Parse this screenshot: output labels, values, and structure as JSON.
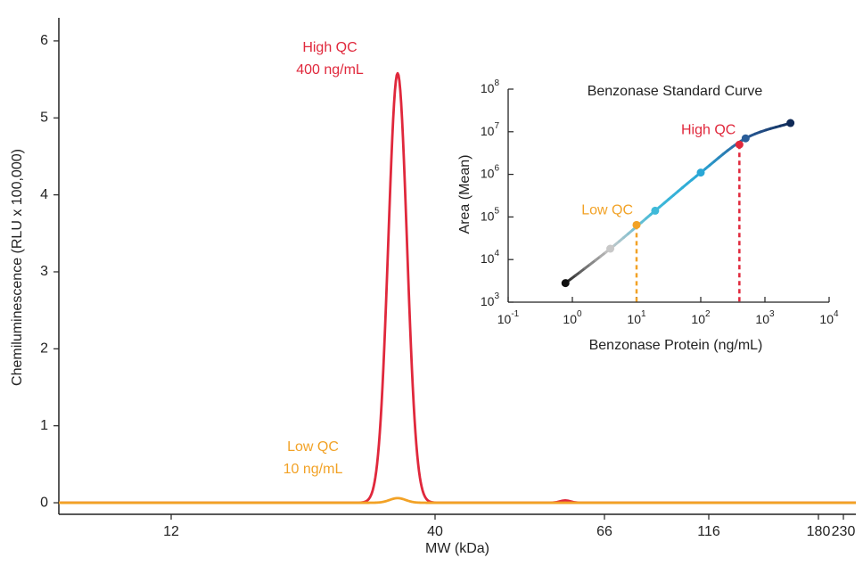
{
  "chart_data": [
    {
      "type": "line",
      "xlabel": "MW (kDa)",
      "ylabel": "Chemiluminescence (RLU x 100,000)",
      "x_tick_labels": [
        "12",
        "40",
        "66",
        "116",
        "180",
        "230"
      ],
      "y_ticks": [
        0,
        1,
        2,
        3,
        4,
        5,
        6
      ],
      "ylim": [
        -0.15,
        6.3
      ],
      "series": [
        {
          "name": "High QC 400 ng/mL",
          "color": "#e0283c",
          "points": [
            [
              "12",
              0
            ],
            [
              "40",
              5.58
            ],
            [
              "66",
              0.02
            ],
            [
              "116",
              0
            ],
            [
              "180",
              0
            ],
            [
              "230",
              0
            ]
          ]
        },
        {
          "name": "Low QC 10 ng/mL",
          "color": "#f2a226",
          "points": [
            [
              "12",
              0
            ],
            [
              "40",
              0.06
            ],
            [
              "66",
              0
            ],
            [
              "116",
              0
            ],
            [
              "180",
              0
            ],
            [
              "230",
              0
            ]
          ]
        }
      ],
      "annotations": [
        {
          "series": 0,
          "lines": [
            "High QC",
            "400 ng/mL"
          ]
        },
        {
          "series": 1,
          "lines": [
            "Low QC",
            "10 ng/mL"
          ]
        }
      ]
    },
    {
      "type": "line",
      "title": "Benzonase Standard Curve",
      "xlabel": "Benzonase Protein (ng/mL)",
      "ylabel": "Area (Mean)",
      "x_scale": "log",
      "y_scale": "log",
      "xlim": [
        0.1,
        10000
      ],
      "ylim": [
        1000,
        100000000
      ],
      "x_tick_labels": [
        {
          "base": "10",
          "exp": "-1"
        },
        {
          "base": "10",
          "exp": "0"
        },
        {
          "base": "10",
          "exp": "1"
        },
        {
          "base": "10",
          "exp": "2"
        },
        {
          "base": "10",
          "exp": "3"
        },
        {
          "base": "10",
          "exp": "4"
        }
      ],
      "y_tick_labels": [
        {
          "base": "10",
          "exp": "3"
        },
        {
          "base": "10",
          "exp": "4"
        },
        {
          "base": "10",
          "exp": "5"
        },
        {
          "base": "10",
          "exp": "6"
        },
        {
          "base": "10",
          "exp": "7"
        },
        {
          "base": "10",
          "exp": "8"
        }
      ],
      "points": [
        {
          "x": 0.78,
          "y": 2800,
          "color": "#111111"
        },
        {
          "x": 3.9,
          "y": 18000,
          "color": "#c8c8c8"
        },
        {
          "x": 19.5,
          "y": 140000,
          "color": "#3fbad9"
        },
        {
          "x": 100,
          "y": 1100000,
          "color": "#2aa7d6"
        },
        {
          "x": 500,
          "y": 7000000,
          "color": "#2a5d99"
        },
        {
          "x": 2500,
          "y": 16000000,
          "color": "#0f2a57"
        }
      ],
      "qc_points": [
        {
          "label": "Low QC",
          "x": 10,
          "y": 65000,
          "color": "#f2a226"
        },
        {
          "label": "High QC",
          "x": 400,
          "y": 5000000,
          "color": "#e0283c"
        }
      ]
    }
  ]
}
